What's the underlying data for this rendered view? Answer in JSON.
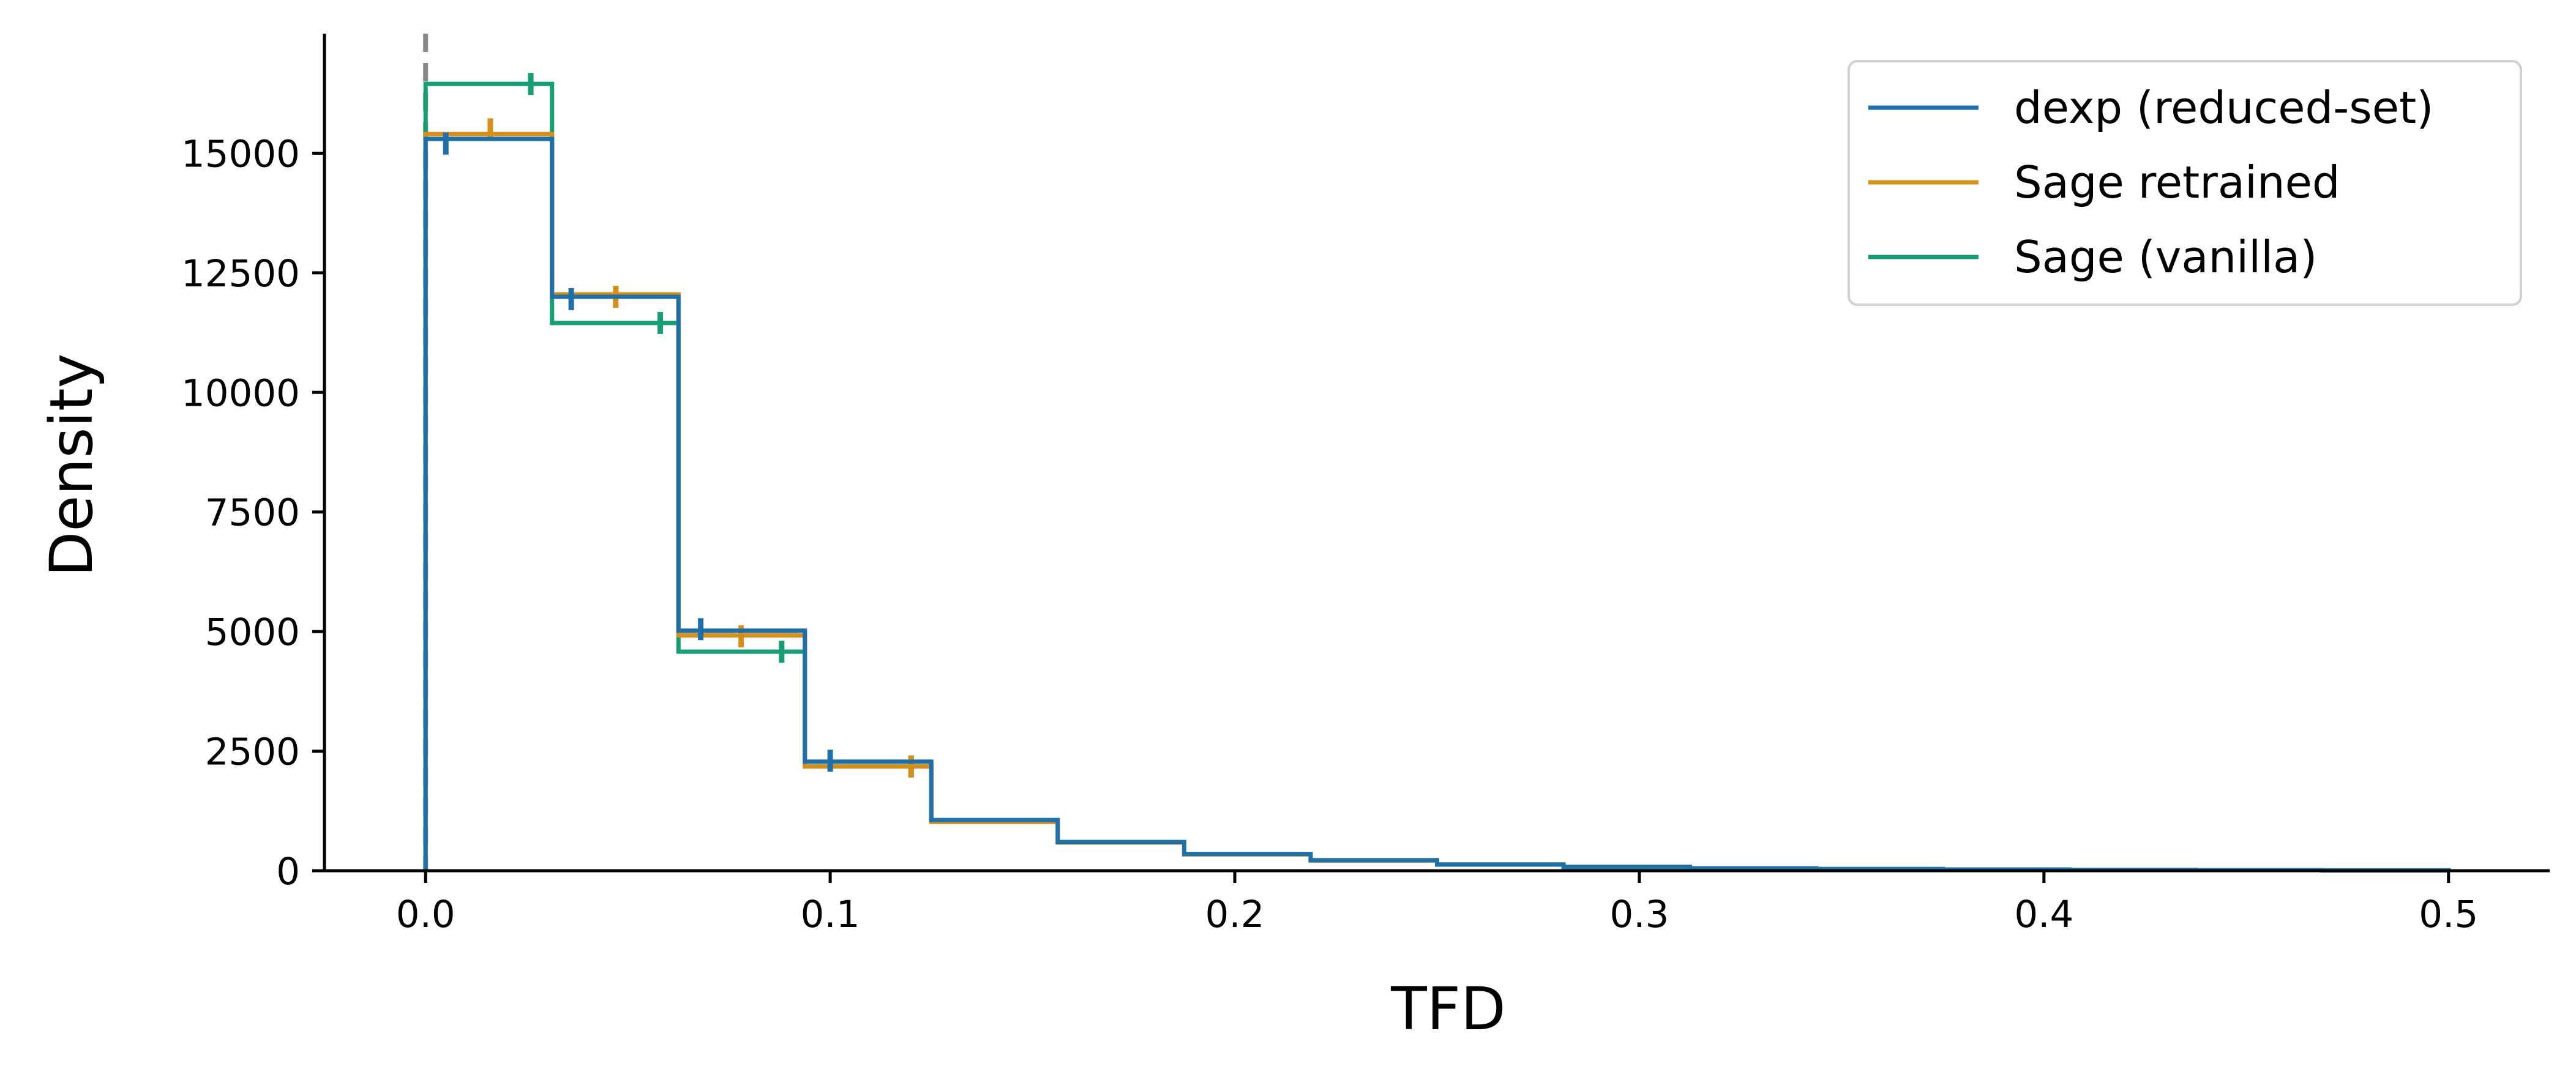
{
  "chart_data": {
    "type": "histogram",
    "xlabel": "TFD",
    "ylabel": "Density",
    "xlim": [
      -0.025,
      0.525
    ],
    "ylim": [
      0,
      17500
    ],
    "x_ticks": [
      0.0,
      0.1,
      0.2,
      0.3,
      0.4,
      0.5
    ],
    "x_tick_labels": [
      "0.0",
      "0.1",
      "0.2",
      "0.3",
      "0.4",
      "0.5"
    ],
    "y_ticks": [
      0,
      2500,
      5000,
      7500,
      10000,
      12500,
      15000
    ],
    "y_tick_labels": [
      "0",
      "2500",
      "5000",
      "7500",
      "10000",
      "12500",
      "15000"
    ],
    "bin_edges": [
      0.0,
      0.03125,
      0.0625,
      0.09375,
      0.125,
      0.15625,
      0.1875,
      0.21875,
      0.25,
      0.28125,
      0.3125,
      0.34375,
      0.375,
      0.40625,
      0.4375,
      0.46875,
      0.5
    ],
    "reference_line": {
      "x": 0.0,
      "color": "#888888",
      "style": "dashed"
    },
    "grid": false,
    "legend_position": "top-right",
    "series": [
      {
        "name": "dexp (reduced-set)",
        "color": "#1f6fa8",
        "values": [
          15300,
          12000,
          5020,
          2280,
          1060,
          600,
          350,
          220,
          130,
          80,
          50,
          35,
          25,
          18,
          12,
          8
        ],
        "error_marks": [
          {
            "x": 0.005,
            "y": 15200
          },
          {
            "x": 0.036,
            "y": 11950
          },
          {
            "x": 0.068,
            "y": 5050
          },
          {
            "x": 0.1,
            "y": 2300
          }
        ]
      },
      {
        "name": "Sage retrained",
        "color": "#d4901a",
        "values": [
          15400,
          12050,
          4920,
          2180,
          1020,
          590,
          340,
          215,
          130,
          80,
          50,
          35,
          25,
          18,
          12,
          8
        ],
        "error_marks": [
          {
            "x": 0.016,
            "y": 15500
          },
          {
            "x": 0.047,
            "y": 12000
          },
          {
            "x": 0.078,
            "y": 4900
          },
          {
            "x": 0.12,
            "y": 2180
          }
        ]
      },
      {
        "name": "Sage (vanilla)",
        "color": "#189e74",
        "values": [
          16450,
          11450,
          4580,
          2180,
          1050,
          600,
          345,
          215,
          130,
          80,
          50,
          35,
          25,
          18,
          12,
          8
        ],
        "error_marks": [
          {
            "x": 0.026,
            "y": 16450
          },
          {
            "x": 0.058,
            "y": 11450
          },
          {
            "x": 0.088,
            "y": 4580
          },
          {
            "x": 0.12,
            "y": 2180
          }
        ]
      }
    ]
  }
}
